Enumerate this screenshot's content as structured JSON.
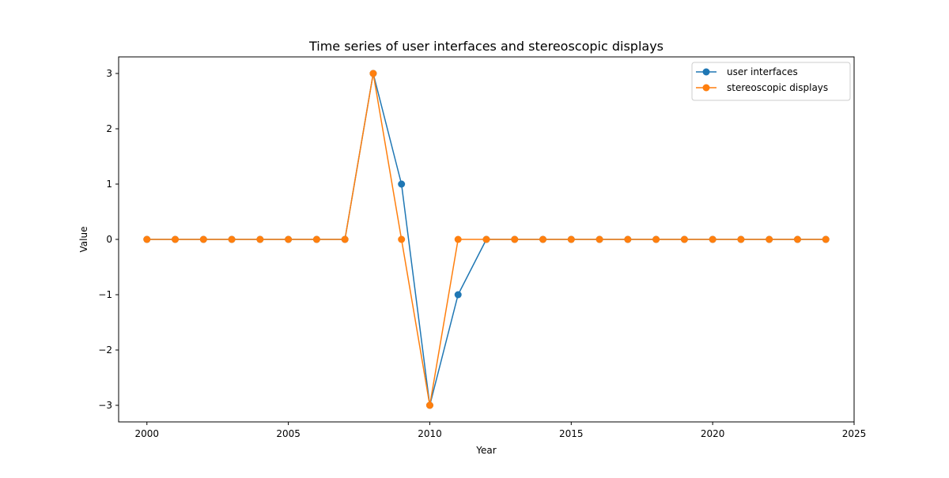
{
  "chart_data": {
    "type": "line",
    "title": "Time series of user interfaces and stereoscopic displays",
    "xlabel": "Year",
    "ylabel": "Value",
    "x": [
      2000,
      2001,
      2002,
      2003,
      2004,
      2005,
      2006,
      2007,
      2008,
      2009,
      2010,
      2011,
      2012,
      2013,
      2014,
      2015,
      2016,
      2017,
      2018,
      2019,
      2020,
      2021,
      2022,
      2023,
      2024
    ],
    "series": [
      {
        "name": "user interfaces",
        "color": "#1f77b4",
        "values": [
          0,
          0,
          0,
          0,
          0,
          0,
          0,
          0,
          3,
          1,
          -3,
          -1,
          0,
          0,
          0,
          0,
          0,
          0,
          0,
          0,
          0,
          0,
          0,
          0,
          0
        ]
      },
      {
        "name": "stereoscopic displays",
        "color": "#ff7f0e",
        "values": [
          0,
          0,
          0,
          0,
          0,
          0,
          0,
          0,
          3,
          0,
          -3,
          0,
          0,
          0,
          0,
          0,
          0,
          0,
          0,
          0,
          0,
          0,
          0,
          0,
          0
        ]
      }
    ],
    "xlim": [
      1999,
      2025
    ],
    "ylim": [
      -3.3,
      3.3
    ],
    "xticks": [
      "2000",
      "2005",
      "2010",
      "2015",
      "2020",
      "2025"
    ],
    "yticks": [
      "−3",
      "−2",
      "−1",
      "0",
      "1",
      "2",
      "3"
    ],
    "grid": false,
    "legend_position": "top-right",
    "marker": "circle"
  }
}
